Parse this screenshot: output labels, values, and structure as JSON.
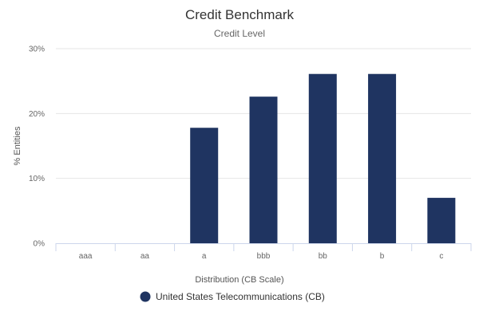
{
  "chart_data": {
    "type": "bar",
    "title": "Credit Benchmark",
    "subtitle": "Credit Level",
    "xlabel": "Distribution (CB Scale)",
    "ylabel": "% Entities",
    "categories": [
      "aaa",
      "aa",
      "a",
      "bbb",
      "bb",
      "b",
      "c"
    ],
    "series": [
      {
        "name": "United States Telecommunications (CB)",
        "values": [
          0,
          0,
          17.8,
          22.6,
          26.1,
          26.1,
          7.0
        ],
        "color": "#1f3461"
      }
    ],
    "ylim": [
      0,
      30
    ],
    "yticks": [
      0,
      10,
      20,
      30
    ],
    "ytick_labels": [
      "0%",
      "10%",
      "20%",
      "30%"
    ],
    "grid": true,
    "legend_position": "bottom"
  }
}
